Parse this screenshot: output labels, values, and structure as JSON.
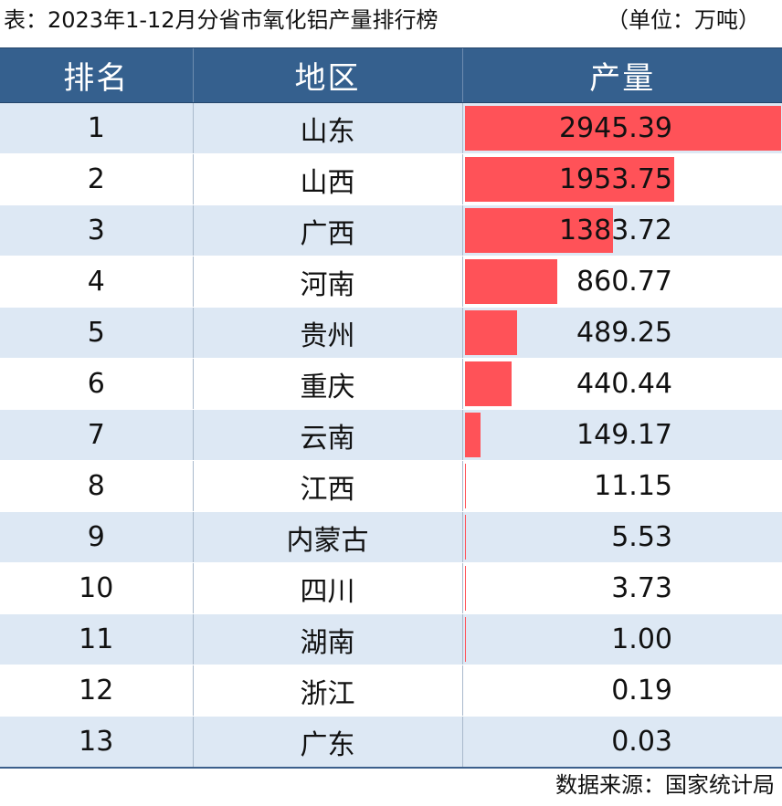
{
  "title": "表：2023年1-12月分省市氧化铝产量排行榜",
  "unit": "（单位：万吨）",
  "source": "数据来源：国家统计局",
  "colors": {
    "header_bg": "#35608e",
    "row_alt_bg": "#dde8f4",
    "bar": "#ff5258"
  },
  "chart_data": {
    "type": "table",
    "columns": [
      "排名",
      "地区",
      "产量"
    ],
    "rows": [
      {
        "rank": "1",
        "region": "山东",
        "value": "2945.39"
      },
      {
        "rank": "2",
        "region": "山西",
        "value": "1953.75"
      },
      {
        "rank": "3",
        "region": "广西",
        "value": "1383.72"
      },
      {
        "rank": "4",
        "region": "河南",
        "value": "860.77"
      },
      {
        "rank": "5",
        "region": "贵州",
        "value": "489.25"
      },
      {
        "rank": "6",
        "region": "重庆",
        "value": "440.44"
      },
      {
        "rank": "7",
        "region": "云南",
        "value": "149.17"
      },
      {
        "rank": "8",
        "region": "江西",
        "value": "11.15"
      },
      {
        "rank": "9",
        "region": "内蒙古",
        "value": "5.53"
      },
      {
        "rank": "10",
        "region": "四川",
        "value": "3.73"
      },
      {
        "rank": "11",
        "region": "湖南",
        "value": "1.00"
      },
      {
        "rank": "12",
        "region": "浙江",
        "value": "0.19"
      },
      {
        "rank": "13",
        "region": "广东",
        "value": "0.03"
      }
    ]
  }
}
